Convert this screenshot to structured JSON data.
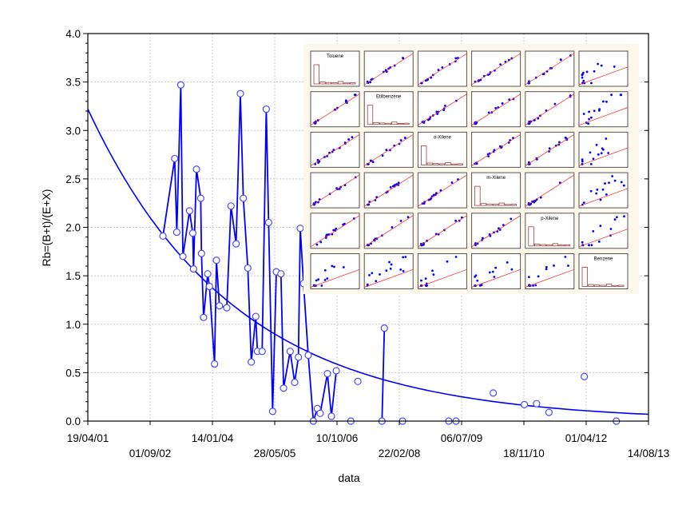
{
  "chart_data": {
    "type": "line",
    "title": "",
    "xlabel": "data",
    "ylabel": "Rb=(B+t)/(E+X)",
    "xlim": [
      "2001-04-19",
      "2013-08-14"
    ],
    "ylim": [
      0,
      4
    ],
    "grid": true,
    "x_tick_labels": [
      "19/04/01",
      "01/09/02",
      "14/01/04",
      "28/05/05",
      "10/10/06",
      "22/02/08",
      "06/07/09",
      "18/11/10",
      "01/04/12",
      "14/08/13"
    ],
    "x_tick_dates": [
      "2001-04-19",
      "2002-09-01",
      "2004-01-14",
      "2005-05-28",
      "2006-10-10",
      "2008-02-22",
      "2009-07-06",
      "2010-11-18",
      "2012-04-01",
      "2013-08-14"
    ],
    "y_tick_labels": [
      "0.0",
      "0.5",
      "1.0",
      "1.5",
      "2.0",
      "2.5",
      "3.0",
      "3.5",
      "4.0"
    ],
    "y_ticks": [
      0,
      0.5,
      1,
      1.5,
      2,
      2.5,
      3,
      3.5,
      4
    ],
    "colors": {
      "series": "#0000ff",
      "marker": "#4a4aff",
      "fit": "#0000ff",
      "grid": "#c8c8c8"
    },
    "series": [
      {
        "segments": [
          [
            [
              "2002-12-13",
              1.91
            ],
            [
              "2003-03-17",
              2.71
            ],
            [
              "2003-04-03",
              1.95
            ],
            [
              "2003-05-05",
              3.47
            ],
            [
              "2003-05-22",
              1.7
            ],
            [
              "2003-07-14",
              2.17
            ],
            [
              "2003-08-09",
              1.94
            ],
            [
              "2003-08-15",
              1.57
            ],
            [
              "2003-09-08",
              2.6
            ],
            [
              "2003-10-12",
              2.3
            ],
            [
              "2003-10-18",
              1.73
            ],
            [
              "2003-11-04",
              1.07
            ],
            [
              "2003-12-07",
              1.52
            ],
            [
              "2003-12-21",
              1.39
            ],
            [
              "2004-01-31",
              0.59
            ],
            [
              "2004-02-15",
              1.66
            ],
            [
              "2004-03-10",
              1.19
            ],
            [
              "2004-05-08",
              1.17
            ],
            [
              "2004-06-11",
              2.22
            ],
            [
              "2004-07-22",
              1.83
            ],
            [
              "2004-08-25",
              3.38
            ],
            [
              "2004-09-18",
              2.3
            ],
            [
              "2004-10-24",
              1.58
            ],
            [
              "2004-11-21",
              0.61
            ],
            [
              "2004-12-27",
              1.08
            ],
            [
              "2005-01-09",
              0.72
            ],
            [
              "2005-02-16",
              0.72
            ],
            [
              "2005-03-21",
              3.22
            ],
            [
              "2005-04-09",
              2.05
            ],
            [
              "2005-05-11",
              0.1
            ],
            [
              "2005-06-10",
              1.54
            ],
            [
              "2005-07-17",
              1.52
            ],
            [
              "2005-08-07",
              0.34
            ],
            [
              "2005-09-29",
              0.72
            ],
            [
              "2005-11-04",
              0.4
            ],
            [
              "2005-12-04",
              0.66
            ],
            [
              "2005-12-19",
              1.99
            ],
            [
              "2006-01-14",
              1.42
            ],
            [
              "2006-02-21",
              0.68
            ],
            [
              "2006-04-03",
              0.0
            ],
            [
              "2006-05-05",
              0.13
            ],
            [
              "2006-05-28",
              0.08
            ],
            [
              "2006-07-25",
              0.49
            ],
            [
              "2006-08-26",
              0.05
            ],
            [
              "2006-10-04",
              0.52
            ]
          ],
          [
            [
              "2007-01-29",
              0.0
            ]
          ],
          [
            [
              "2007-03-26",
              0.41
            ]
          ],
          [
            [
              "2007-10-06",
              0.0
            ],
            [
              "2007-10-25",
              0.96
            ]
          ],
          [
            [
              "2008-03-19",
              0.0
            ]
          ],
          [
            [
              "2009-03-25",
              0.0
            ]
          ],
          [
            [
              "2009-05-22",
              0.0
            ]
          ],
          [
            [
              "2010-03-17",
              0.29
            ]
          ],
          [
            [
              "2010-11-22",
              0.17
            ]
          ],
          [
            [
              "2011-02-28",
              0.18
            ]
          ],
          [
            [
              "2011-06-07",
              0.09
            ]
          ],
          [
            [
              "2012-03-17",
              0.46
            ]
          ],
          [
            [
              "2012-11-29",
              0.0
            ]
          ]
        ]
      }
    ],
    "fit_curve": {
      "type": "exponential",
      "x": [
        "2001-04-19",
        "2002-09-01",
        "2004-01-14",
        "2005-05-28",
        "2006-10-10",
        "2008-02-22",
        "2009-07-06",
        "2010-11-18",
        "2012-04-01",
        "2013-08-14"
      ],
      "y": [
        3.22,
        2.1,
        1.375,
        0.899,
        0.587,
        0.384,
        0.251,
        0.164,
        0.107,
        0.07
      ]
    }
  },
  "inset": {
    "type": "scatterplot-matrix",
    "variables": [
      "Toluene",
      "Etilbenzene",
      "o-Xilene",
      "m-Xilene",
      "p-Xilene",
      "Benzene"
    ],
    "colors": {
      "background": "#fdf8ec",
      "points": "#0000ff",
      "regression": "#ff2020",
      "histogram": "#a04040"
    }
  }
}
